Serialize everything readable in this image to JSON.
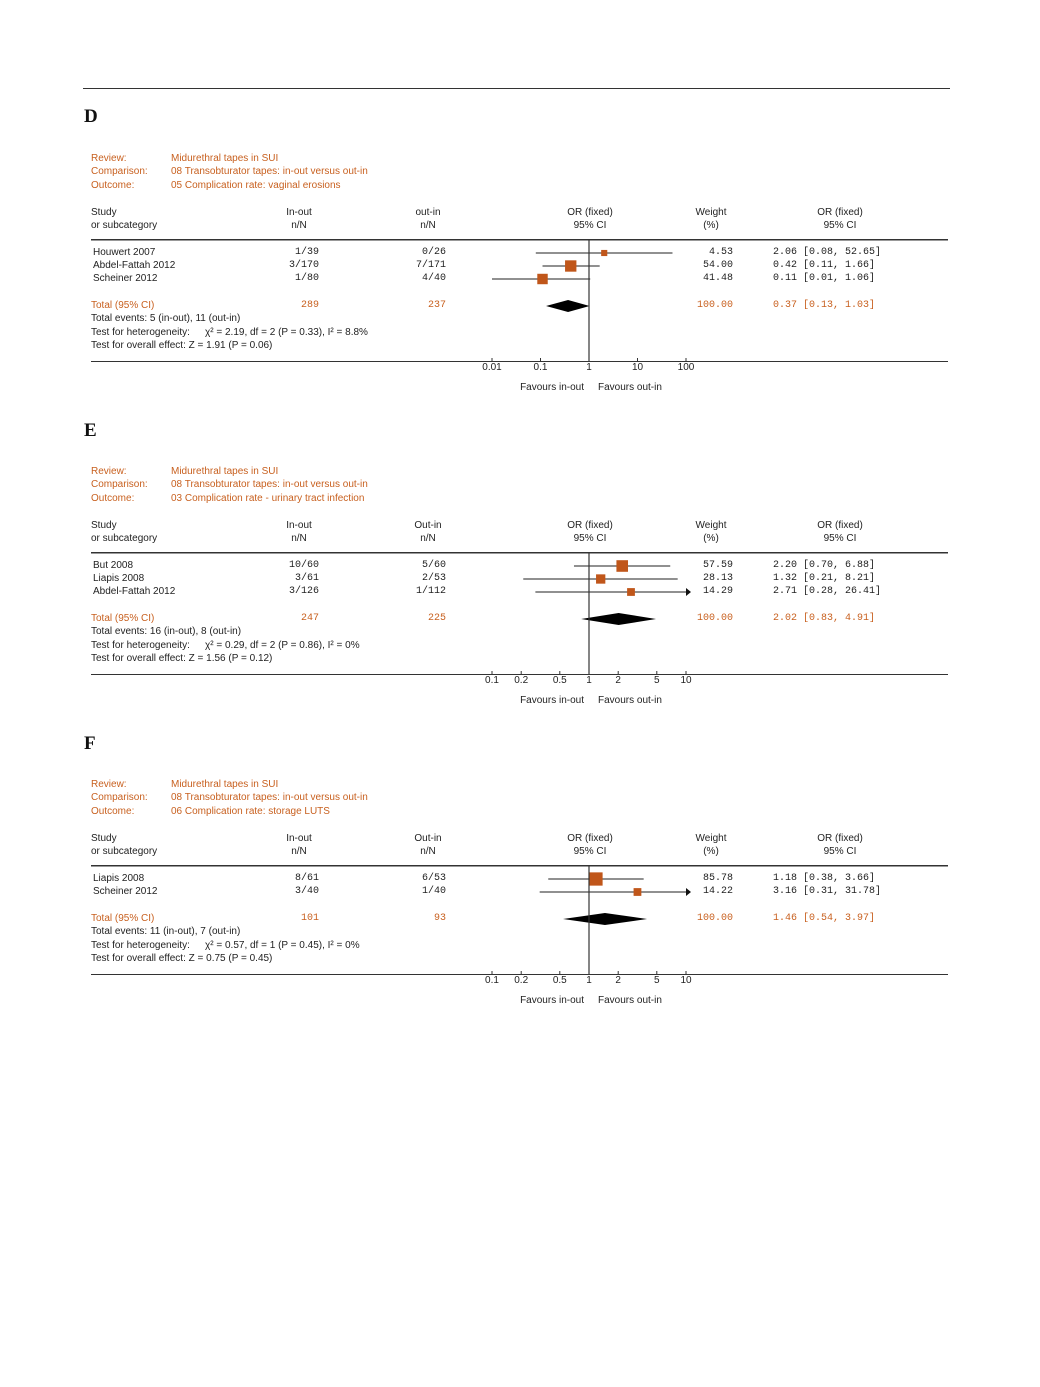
{
  "colors": {
    "accent": "#c8601f",
    "marker": "#c0561a",
    "text": "#222222",
    "diamond": "#000000"
  },
  "chart_data": [
    {
      "type": "forest",
      "panel_label": "D",
      "review_label": "Review:",
      "review": "Midurethral tapes in SUI",
      "comparison_label": "Comparison:",
      "comparison": "08 Transobturator tapes: in-out versus out-in",
      "outcome_label": "Outcome:",
      "outcome": "05 Complication rate: vaginal erosions",
      "headers": {
        "study": [
          "Study",
          "or subcategory"
        ],
        "group1": [
          "In-out",
          "n/N"
        ],
        "group2": [
          "out-in",
          "n/N"
        ],
        "plot": [
          "OR (fixed)",
          "95% CI"
        ],
        "weight": [
          "Weight",
          "(%)"
        ],
        "ci": [
          "OR (fixed)",
          "95% CI"
        ]
      },
      "studies": [
        {
          "name": "Houwert 2007",
          "g1": "1/39",
          "g2": "0/26",
          "weight": "4.53",
          "ci_text": "2.06 [0.08, 52.65]",
          "or": 2.06,
          "lo": 0.08,
          "hi": 52.65
        },
        {
          "name": "Abdel-Fattah 2012",
          "g1": "3/170",
          "g2": "7/171",
          "weight": "54.00",
          "ci_text": "0.42 [0.11, 1.66]",
          "or": 0.42,
          "lo": 0.11,
          "hi": 1.66
        },
        {
          "name": "Scheiner 2012",
          "g1": "1/80",
          "g2": "4/40",
          "weight": "41.48",
          "ci_text": "0.11 [0.01, 1.06]",
          "or": 0.11,
          "lo": 0.01,
          "hi": 1.06
        }
      ],
      "total": {
        "label": "Total (95% CI)",
        "g1": "289",
        "g2": "237",
        "weight": "100.00",
        "ci_text": "0.37 [0.13, 1.03]",
        "or": 0.37,
        "lo": 0.13,
        "hi": 1.03
      },
      "total_events": "Total events: 5 (in-out), 11 (out-in)",
      "heterogeneity_label": "Test for heterogeneity:",
      "heterogeneity": "χ² = 2.19, df = 2 (P = 0.33), I² = 8.8%",
      "overall_effect": "Test for overall effect: Z = 1.91 (P = 0.06)",
      "x_scale": "log",
      "xlim": [
        0.01,
        100
      ],
      "ticks": [
        "0.01",
        "0.1",
        "1",
        "10",
        "100"
      ],
      "favours_left": "Favours in-out",
      "favours_right": "Favours out-in"
    },
    {
      "type": "forest",
      "panel_label": "E",
      "review_label": "Review:",
      "review": "Midurethral tapes in SUI",
      "comparison_label": "Comparison:",
      "comparison": "08 Transobturator tapes: in-out versus out-in",
      "outcome_label": "Outcome:",
      "outcome": "03 Complication rate - urinary tract infection",
      "headers": {
        "study": [
          "Study",
          "or subcategory"
        ],
        "group1": [
          "In-out",
          "n/N"
        ],
        "group2": [
          "Out-in",
          "n/N"
        ],
        "plot": [
          "OR (fixed)",
          "95% CI"
        ],
        "weight": [
          "Weight",
          "(%)"
        ],
        "ci": [
          "OR (fixed)",
          "95% CI"
        ]
      },
      "studies": [
        {
          "name": "But 2008",
          "g1": "10/60",
          "g2": "5/60",
          "weight": "57.59",
          "ci_text": "2.20 [0.70, 6.88]",
          "or": 2.2,
          "lo": 0.7,
          "hi": 6.88
        },
        {
          "name": "Liapis 2008",
          "g1": "3/61",
          "g2": "2/53",
          "weight": "28.13",
          "ci_text": "1.32 [0.21, 8.21]",
          "or": 1.32,
          "lo": 0.21,
          "hi": 8.21
        },
        {
          "name": "Abdel-Fattah 2012",
          "g1": "3/126",
          "g2": "1/112",
          "weight": "14.29",
          "ci_text": "2.71 [0.28, 26.41]",
          "or": 2.71,
          "lo": 0.28,
          "hi": 26.41
        }
      ],
      "total": {
        "label": "Total (95% CI)",
        "g1": "247",
        "g2": "225",
        "weight": "100.00",
        "ci_text": "2.02 [0.83, 4.91]",
        "or": 2.02,
        "lo": 0.83,
        "hi": 4.91
      },
      "total_events": "Total events: 16 (in-out), 8 (out-in)",
      "heterogeneity_label": "Test for heterogeneity:",
      "heterogeneity": "χ² = 0.29, df = 2 (P = 0.86), I² = 0%",
      "overall_effect": "Test for overall effect: Z = 1.56 (P = 0.12)",
      "x_scale": "log",
      "xlim": [
        0.1,
        10
      ],
      "ticks": [
        "0.1",
        "0.2",
        "0.5",
        "1",
        "2",
        "5",
        "10"
      ],
      "favours_left": "Favours in-out",
      "favours_right": "Favours out-in"
    },
    {
      "type": "forest",
      "panel_label": "F",
      "review_label": "Review:",
      "review": "Midurethral tapes in SUI",
      "comparison_label": "Comparison:",
      "comparison": "08 Transobturator tapes: in-out versus out-in",
      "outcome_label": "Outcome:",
      "outcome": "06 Complication rate: storage LUTS",
      "headers": {
        "study": [
          "Study",
          "or subcategory"
        ],
        "group1": [
          "In-out",
          "n/N"
        ],
        "group2": [
          "Out-in",
          "n/N"
        ],
        "plot": [
          "OR (fixed)",
          "95% CI"
        ],
        "weight": [
          "Weight",
          "(%)"
        ],
        "ci": [
          "OR (fixed)",
          "95% CI"
        ]
      },
      "studies": [
        {
          "name": "Liapis 2008",
          "g1": "8/61",
          "g2": "6/53",
          "weight": "85.78",
          "ci_text": "1.18 [0.38, 3.66]",
          "or": 1.18,
          "lo": 0.38,
          "hi": 3.66
        },
        {
          "name": "Scheiner 2012",
          "g1": "3/40",
          "g2": "1/40",
          "weight": "14.22",
          "ci_text": "3.16 [0.31, 31.78]",
          "or": 3.16,
          "lo": 0.31,
          "hi": 31.78
        }
      ],
      "total": {
        "label": "Total (95% CI)",
        "g1": "101",
        "g2": "93",
        "weight": "100.00",
        "ci_text": "1.46 [0.54, 3.97]",
        "or": 1.46,
        "lo": 0.54,
        "hi": 3.97
      },
      "total_events": "Total events: 11 (in-out), 7 (out-in)",
      "heterogeneity_label": "Test for heterogeneity:",
      "heterogeneity": "χ² = 0.57, df = 1 (P = 0.45), I² = 0%",
      "overall_effect": "Test for overall effect: Z = 0.75 (P = 0.45)",
      "x_scale": "log",
      "xlim": [
        0.1,
        10
      ],
      "ticks": [
        "0.1",
        "0.2",
        "0.5",
        "1",
        "2",
        "5",
        "10"
      ],
      "favours_left": "Favours in-out",
      "favours_right": "Favours out-in"
    }
  ]
}
